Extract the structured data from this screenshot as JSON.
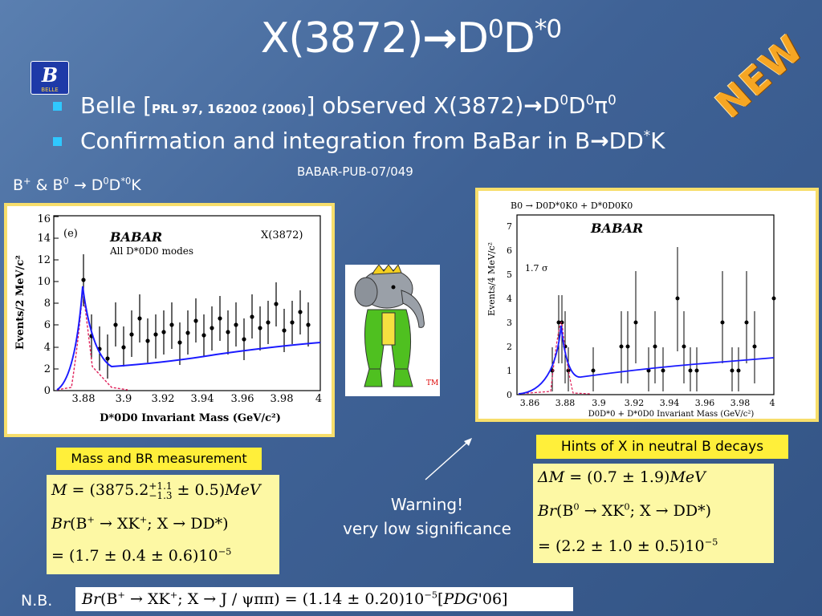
{
  "title": {
    "base": "X(3872)",
    "arrow": "→",
    "p1": "D",
    "p1_sup": "0",
    "p2": "D",
    "p2_sup": "*0"
  },
  "belle_logo": {
    "letter": "B",
    "text": "BELLE"
  },
  "new_stamp": "NEW",
  "bullets": [
    {
      "pre": "Belle [",
      "ref": "PRL 97, 162002 (2006)",
      "post": "] observed X(3872)",
      "arrow": "→",
      "tail": "D",
      "tail_sup1": "0",
      "tail2": "D",
      "tail_sup2": "0",
      "tail3": "π",
      "tail_sup3": "0"
    },
    {
      "pre": "Confirmation and integration from BaBar in B",
      "arrow": "→",
      "tail": "DD",
      "tail_sup": "*",
      "tail2": "K"
    }
  ],
  "babar_pub": "BABAR-PUB-07/049",
  "decay_label": {
    "a": "B",
    "a_sup": "+",
    "b": " & B",
    "b_sup": "0",
    "arrow": " → ",
    "c": "D",
    "c_sup": "0",
    "d": "D",
    "d_sup": "*0",
    "e": "K"
  },
  "left_plot": {
    "panel_tag": "(e)",
    "logo": "BABAR",
    "subtitle": "All D*0D0 modes",
    "x_tag": "X(3872)",
    "ylabel": "Events/2 MeV/c²",
    "xlabel": "D*0D0 Invariant Mass (GeV/c²)",
    "xticks": [
      "3.88",
      "3.9",
      "3.92",
      "3.94",
      "3.96",
      "3.98",
      "4"
    ],
    "yticks": [
      "0",
      "2",
      "4",
      "6",
      "8",
      "10",
      "12",
      "14",
      "16"
    ]
  },
  "right_plot": {
    "header": "B0 → D0D*0K0 + D*0D0K0",
    "logo": "BABAR",
    "sigma_label": "1.7 σ",
    "ylabel": "Events/4 MeV/c²",
    "xlabel": "D0D*0 + D*0D0 Invariant Mass (GeV/c²)",
    "xticks": [
      "3.86",
      "3.88",
      "3.9",
      "3.92",
      "3.94",
      "3.96",
      "3.98",
      "4"
    ],
    "yticks": [
      "0",
      "1",
      "2",
      "3",
      "4",
      "5",
      "6",
      "7"
    ]
  },
  "mascot_tag": "TM",
  "mass_box": {
    "header": "Mass and BR measurement",
    "line1": {
      "a": "M",
      "b": " = (3875.2",
      "up": "+1.1",
      "down": "−1.3",
      "c": " ± 0.5)",
      "d": "MeV"
    },
    "line2": {
      "a": "Br",
      "b": "(B",
      "b_sup": "+",
      "c": " → XK",
      "c_sup": "+",
      "d": "; X → DD*)"
    },
    "line3": {
      "a": "= (1.7 ± 0.4 ± 0.6)10",
      "sup": "−5"
    }
  },
  "hints_box": {
    "header": "Hints of X in neutral B decays",
    "line1": {
      "a": "ΔM",
      "b": " = (0.7 ± 1.9)",
      "c": "MeV"
    },
    "line2": {
      "a": "Br",
      "b": "(B",
      "b_sup": "0",
      "c": " → XK",
      "c_sup": "0",
      "d": "; X → DD*)"
    },
    "line3": {
      "a": "= (2.2 ± 1.0 ± 0.5)10",
      "sup": "−5"
    }
  },
  "warning": {
    "line1": "Warning!",
    "line2": "very low significance"
  },
  "nb": "N.B.",
  "bottom_formula": {
    "a": "Br",
    "b": "(B",
    "b_sup": "+",
    "c": " → XK",
    "c_sup": "+",
    "d": "; X → J / ψππ) = (1.14 ± 0.20)10",
    "e_sup": "−5",
    "f": "[",
    "g": "PDG",
    "h": "'06]"
  },
  "colors": {
    "background": "#3f6296",
    "accent_bullet": "#2fc8ff",
    "header_yellow": "#ffef3a",
    "box_yellow": "#fdf8a4",
    "stamp_orange": "#f6a623",
    "fit_blue": "#1a1aff",
    "signal_red": "#e0205a"
  }
}
